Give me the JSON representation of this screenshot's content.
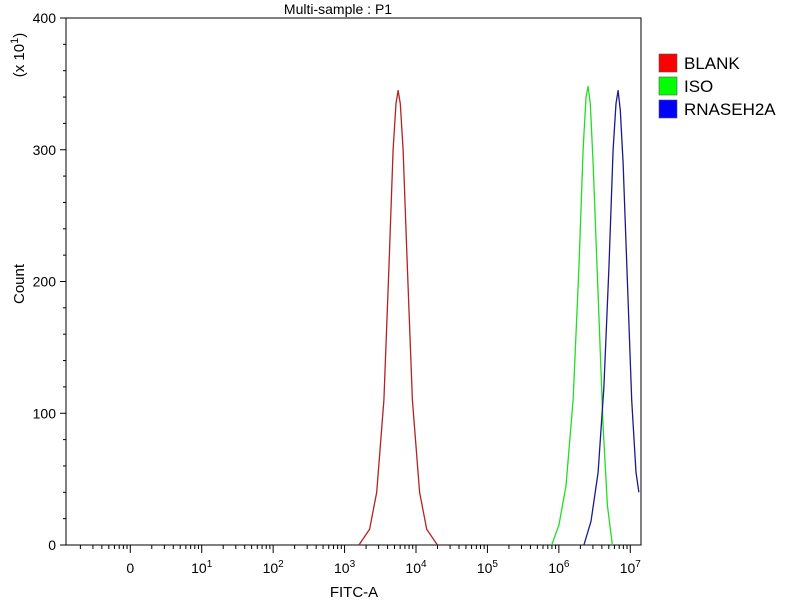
{
  "chart_data": {
    "type": "line",
    "title": "Multi-sample : P1",
    "xlabel": "FITC-A",
    "ylabel": "Count",
    "y_multiplier_label": "(x 10",
    "y_multiplier_exp": "1",
    "y_multiplier_close": ")",
    "xscale": "log (biexponential display)",
    "xlim_exp": [
      -0.9,
      7.15
    ],
    "ylim": [
      0,
      400
    ],
    "grid": false,
    "legend_position": "top-right",
    "y_ticks": [
      {
        "value": 0,
        "label": "0"
      },
      {
        "value": 100,
        "label": "100"
      },
      {
        "value": 200,
        "label": "200"
      },
      {
        "value": 300,
        "label": "300"
      },
      {
        "value": 400,
        "label": "400"
      }
    ],
    "x_ticks": [
      {
        "exp": 0,
        "base": "0",
        "sup": ""
      },
      {
        "exp": 1,
        "base": "10",
        "sup": "1"
      },
      {
        "exp": 2,
        "base": "10",
        "sup": "2"
      },
      {
        "exp": 3,
        "base": "10",
        "sup": "3"
      },
      {
        "exp": 4,
        "base": "10",
        "sup": "4"
      },
      {
        "exp": 5,
        "base": "10",
        "sup": "5"
      },
      {
        "exp": 6,
        "base": "10",
        "sup": "6"
      },
      {
        "exp": 7,
        "base": "10",
        "sup": "7"
      }
    ],
    "series": [
      {
        "name": "BLANK",
        "color": "#b22222",
        "legend_color": "#ff0000",
        "points": [
          [
            3.2,
            0
          ],
          [
            3.35,
            12
          ],
          [
            3.45,
            40
          ],
          [
            3.55,
            110
          ],
          [
            3.62,
            210
          ],
          [
            3.68,
            300
          ],
          [
            3.72,
            335
          ],
          [
            3.75,
            345
          ],
          [
            3.78,
            335
          ],
          [
            3.82,
            300
          ],
          [
            3.88,
            210
          ],
          [
            3.95,
            110
          ],
          [
            4.05,
            40
          ],
          [
            4.15,
            12
          ],
          [
            4.3,
            0
          ]
        ]
      },
      {
        "name": "ISO",
        "color": "#22dd22",
        "legend_color": "#00ff00",
        "points": [
          [
            5.9,
            0
          ],
          [
            6.0,
            15
          ],
          [
            6.1,
            45
          ],
          [
            6.2,
            110
          ],
          [
            6.28,
            210
          ],
          [
            6.34,
            300
          ],
          [
            6.38,
            340
          ],
          [
            6.41,
            348
          ],
          [
            6.44,
            335
          ],
          [
            6.48,
            290
          ],
          [
            6.55,
            190
          ],
          [
            6.62,
            90
          ],
          [
            6.68,
            30
          ],
          [
            6.75,
            0
          ]
        ]
      },
      {
        "name": "RNASEH2A",
        "color": "#1a1a8c",
        "legend_color": "#0000ff",
        "points": [
          [
            6.35,
            0
          ],
          [
            6.45,
            18
          ],
          [
            6.55,
            55
          ],
          [
            6.63,
            120
          ],
          [
            6.7,
            210
          ],
          [
            6.76,
            300
          ],
          [
            6.8,
            335
          ],
          [
            6.83,
            345
          ],
          [
            6.86,
            330
          ],
          [
            6.9,
            290
          ],
          [
            6.96,
            200
          ],
          [
            7.02,
            110
          ],
          [
            7.08,
            55
          ],
          [
            7.12,
            40
          ]
        ]
      }
    ]
  }
}
